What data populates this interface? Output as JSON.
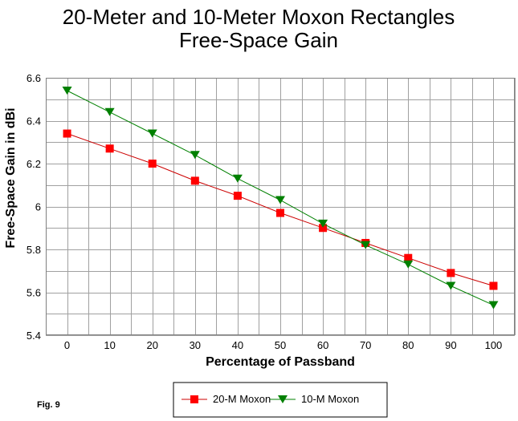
{
  "chart_data": {
    "type": "line",
    "title": "20-Meter and 10-Meter Moxon Rectangles",
    "subtitle": "Free-Space Gain",
    "xlabel": "Percentage of Passband",
    "ylabel": "Free-Space Gain in dBi",
    "x": [
      0,
      10,
      20,
      30,
      40,
      50,
      60,
      70,
      80,
      90,
      100
    ],
    "xlim": [
      -5,
      105
    ],
    "ylim": [
      5.4,
      6.6
    ],
    "x_ticks": [
      0,
      10,
      20,
      30,
      40,
      50,
      60,
      70,
      80,
      90,
      100
    ],
    "x_tick_labels": [
      "0",
      "10",
      "20",
      "30",
      "40",
      "50",
      "60",
      "70",
      "80",
      "90",
      "100"
    ],
    "y_ticks": [
      5.4,
      5.6,
      5.8,
      6.0,
      6.2,
      6.4,
      6.6
    ],
    "y_tick_labels": [
      "5.4",
      "5.6",
      "5.8",
      "6",
      "6.2",
      "6.4",
      "6.6"
    ],
    "grid": true,
    "legend_position": "bottom-center",
    "series": [
      {
        "name": "20-M Moxon",
        "color": "#cc0000",
        "marker": "square",
        "values": [
          6.34,
          6.27,
          6.2,
          6.12,
          6.05,
          5.97,
          5.9,
          5.83,
          5.76,
          5.69,
          5.63
        ]
      },
      {
        "name": "10-M Moxon",
        "color": "#008000",
        "marker": "triangle-down",
        "values": [
          6.54,
          6.44,
          6.34,
          6.24,
          6.13,
          6.03,
          5.92,
          5.82,
          5.73,
          5.63,
          5.54
        ]
      }
    ],
    "annotation": "Fig. 9"
  }
}
